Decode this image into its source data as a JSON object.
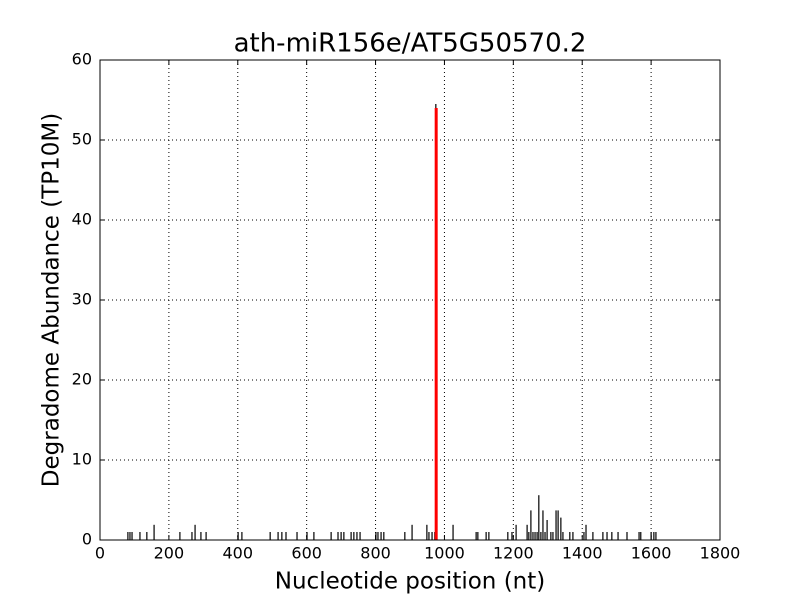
{
  "chart_data": {
    "type": "stem",
    "title": "ath-miR156e/AT5G50570.2",
    "x_label": "Nucleotide position (nt)",
    "y_label": "Degradome Abundance (TP10M)",
    "xlim": [
      0,
      1800
    ],
    "xticks": [
      0,
      200,
      400,
      600,
      800,
      1000,
      1200,
      1400,
      1600,
      1800
    ],
    "ylim": [
      0,
      60
    ],
    "yticks": [
      0,
      10,
      20,
      30,
      40,
      50,
      60
    ],
    "grid": true,
    "series": [
      {
        "color": "#000000",
        "x": [
          81,
          87,
          93,
          116,
          136,
          157,
          232,
          267,
          276,
          293,
          308,
          401,
          412,
          494,
          517,
          528,
          540,
          572,
          601,
          621,
          671,
          691,
          700,
          708,
          729,
          737,
          746,
          755,
          801,
          807,
          816,
          824,
          885,
          906,
          949,
          955,
          964,
          972,
          975,
          1025,
          1092,
          1097,
          1121,
          1129,
          1184,
          1196,
          1208,
          1240,
          1245,
          1251,
          1257,
          1263,
          1269,
          1274,
          1280,
          1286,
          1292,
          1298,
          1309,
          1315,
          1324,
          1330,
          1338,
          1344,
          1364,
          1373,
          1405,
          1411,
          1431,
          1460,
          1472,
          1486,
          1504,
          1530,
          1565,
          1570,
          1600,
          1608,
          1614
        ],
        "values": [
          1,
          1,
          1,
          1,
          1,
          1.9,
          1,
          1,
          1.9,
          1,
          1,
          1,
          1,
          1,
          1,
          1,
          1,
          1,
          1,
          1,
          1,
          1,
          1,
          1,
          1,
          1,
          1,
          1,
          1,
          1,
          1,
          1,
          1,
          1.9,
          1.9,
          1,
          1,
          1,
          54.5,
          1.9,
          1,
          1,
          1,
          1,
          1,
          1,
          1.9,
          1.9,
          1,
          3.7,
          1,
          1,
          1,
          5.6,
          1,
          3.7,
          1,
          2.5,
          1,
          1,
          3.7,
          3.7,
          2.8,
          1,
          1,
          1,
          1,
          1.9,
          1,
          1,
          1,
          1,
          1,
          1,
          1,
          1,
          1,
          1,
          1
        ]
      },
      {
        "color": "#ff0000",
        "x": [
          976
        ],
        "values": [
          54
        ]
      }
    ]
  }
}
